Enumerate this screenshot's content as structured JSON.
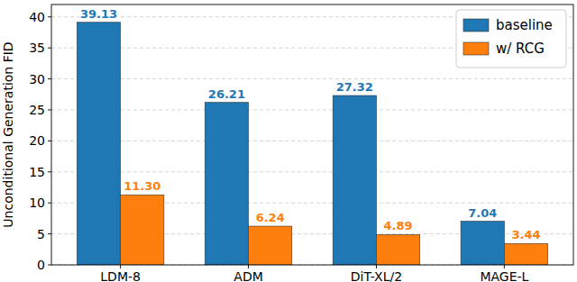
{
  "chart_data": {
    "type": "bar",
    "categories": [
      "LDM-8",
      "ADM",
      "DiT-XL/2",
      "MAGE-L"
    ],
    "series": [
      {
        "name": "baseline",
        "color": "#1f77b4",
        "values": [
          39.13,
          26.21,
          27.32,
          7.04
        ]
      },
      {
        "name": "w/ RCG",
        "color": "#ff7f0e",
        "values": [
          11.3,
          6.24,
          4.89,
          3.44
        ],
        "value_labels": [
          "11.30",
          "6.24",
          "4.89",
          "3.44"
        ]
      }
    ],
    "y_label": "Unconditional Generation FID",
    "ylim": [
      0,
      42
    ],
    "yticks": [
      0,
      5,
      10,
      15,
      20,
      25,
      30,
      35,
      40
    ],
    "grid": true,
    "legend": "upper right",
    "data_labels": true
  }
}
